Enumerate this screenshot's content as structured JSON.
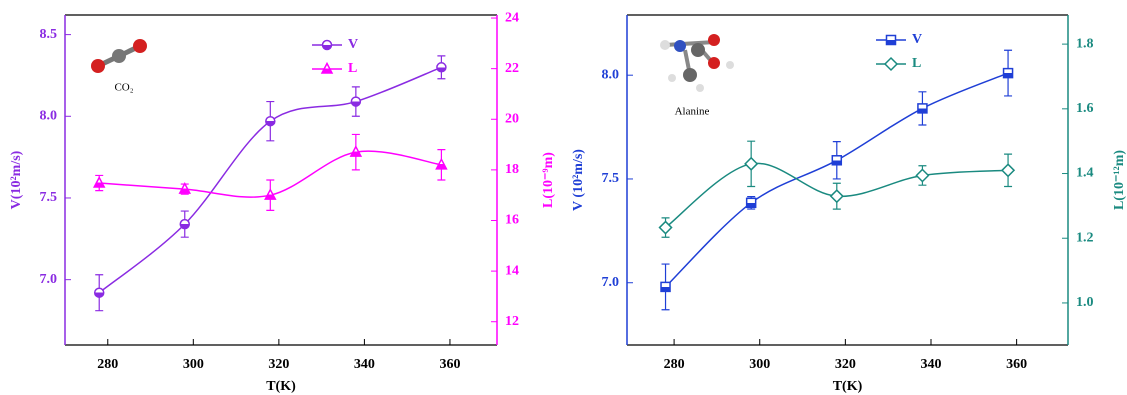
{
  "chart_data": [
    {
      "type": "line",
      "xlabel": "T(K)",
      "ylabel": "V(10²m/s)",
      "y2label": "L(10⁻⁹m)",
      "annotation": "CO₂",
      "x": [
        278,
        298,
        318,
        338,
        358
      ],
      "xlim": [
        270,
        371
      ],
      "xticks": [
        280,
        300,
        320,
        340,
        360
      ],
      "ylim": [
        6.6,
        8.62
      ],
      "yticks": [
        {
          "value": 7,
          "label": "7.0"
        },
        7.5,
        {
          "value": 8,
          "label": "8.0"
        },
        8.5
      ],
      "y2lim": [
        11.08,
        24.12
      ],
      "y2ticks": [
        12,
        14,
        16,
        18,
        20,
        22,
        24
      ],
      "series": [
        {
          "name": "V",
          "color": "#8a2be2",
          "marker": "circle-half",
          "values": [
            6.92,
            7.34,
            7.97,
            8.09,
            8.3
          ],
          "errors": [
            0.11,
            0.08,
            0.12,
            0.09,
            0.07
          ]
        },
        {
          "name": "L",
          "color": "#ff00ff",
          "marker": "triangle-half",
          "axis": "y2",
          "values": [
            17.48,
            17.24,
            17.0,
            18.7,
            18.2
          ],
          "errors": [
            0.3,
            0.2,
            0.6,
            0.7,
            0.6
          ]
        }
      ]
    },
    {
      "type": "line",
      "xlabel": "T(K)",
      "ylabel": "V (10²m/s)",
      "y2label": "L(10⁻¹²m)",
      "annotation": "Alanine",
      "x": [
        278,
        298,
        318,
        338,
        358
      ],
      "xlim": [
        269,
        372
      ],
      "xticks": [
        280,
        300,
        320,
        340,
        360
      ],
      "ylim": [
        6.7,
        8.29
      ],
      "yticks": [
        {
          "value": 7,
          "label": "7.0"
        },
        7.5,
        {
          "value": 8,
          "label": "8.0"
        }
      ],
      "y2lim": [
        0.87,
        1.89
      ],
      "y2ticks": [
        {
          "value": 1,
          "label": "1.0"
        },
        1.2,
        1.4,
        1.6,
        1.8
      ],
      "series": [
        {
          "name": "V",
          "color": "#1f3fd6",
          "marker": "square-half",
          "values": [
            6.98,
            7.385,
            7.59,
            7.84,
            8.01
          ],
          "errors": [
            0.11,
            0.03,
            0.09,
            0.08,
            0.11
          ]
        },
        {
          "name": "L",
          "color": "#1a8a80",
          "marker": "diamond-open",
          "axis": "y2",
          "values": [
            1.233,
            1.43,
            1.33,
            1.394,
            1.41
          ],
          "errors": [
            0.03,
            0.07,
            0.04,
            0.03,
            0.05
          ]
        }
      ]
    }
  ]
}
